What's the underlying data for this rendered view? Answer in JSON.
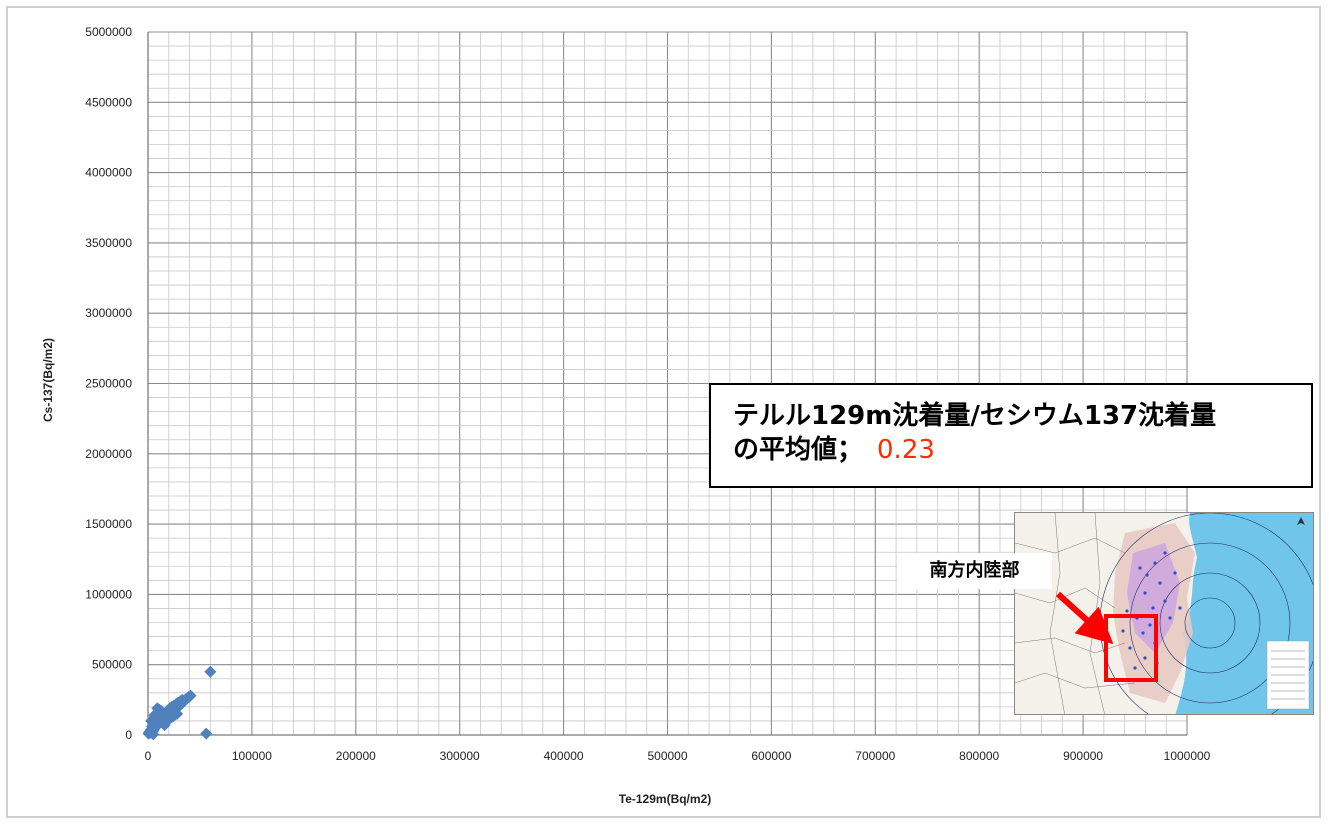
{
  "chart_data": {
    "type": "scatter",
    "xlabel": "Te-129m(Bq/m2)",
    "ylabel": "Cs-137(Bq/m2)",
    "xlim": [
      0,
      1000000
    ],
    "ylim": [
      0,
      5000000
    ],
    "x_ticks": [
      "0",
      "100000",
      "200000",
      "300000",
      "400000",
      "500000",
      "600000",
      "700000",
      "800000",
      "900000",
      "1000000"
    ],
    "y_ticks": [
      "0",
      "500000",
      "1000000",
      "1500000",
      "2000000",
      "2500000",
      "3000000",
      "3500000",
      "4000000",
      "4500000",
      "5000000"
    ],
    "grid": true,
    "minor_grid": true,
    "marker_color": "#4f81bd",
    "series": [
      {
        "points": [
          [
            500,
            10000
          ],
          [
            1000,
            20000
          ],
          [
            2000,
            15000
          ],
          [
            3000,
            40000
          ],
          [
            4000,
            60000
          ],
          [
            5000,
            30000
          ],
          [
            6000,
            80000
          ],
          [
            7000,
            100000
          ],
          [
            8000,
            120000
          ],
          [
            9000,
            140000
          ],
          [
            10000,
            160000
          ],
          [
            11000,
            180000
          ],
          [
            12000,
            150000
          ],
          [
            13000,
            170000
          ],
          [
            14000,
            120000
          ],
          [
            15000,
            130000
          ],
          [
            16000,
            100000
          ],
          [
            17000,
            150000
          ],
          [
            18000,
            160000
          ],
          [
            19000,
            140000
          ],
          [
            20000,
            180000
          ],
          [
            21000,
            190000
          ],
          [
            22000,
            170000
          ],
          [
            23000,
            200000
          ],
          [
            24000,
            180000
          ],
          [
            25000,
            210000
          ],
          [
            26000,
            200000
          ],
          [
            27000,
            220000
          ],
          [
            28000,
            190000
          ],
          [
            29000,
            230000
          ],
          [
            30000,
            210000
          ],
          [
            31000,
            240000
          ],
          [
            32000,
            220000
          ],
          [
            33000,
            250000
          ],
          [
            35000,
            240000
          ],
          [
            37000,
            260000
          ],
          [
            39000,
            270000
          ],
          [
            41000,
            280000
          ],
          [
            5000,
            5000
          ],
          [
            8000,
            60000
          ],
          [
            12000,
            90000
          ],
          [
            16000,
            70000
          ],
          [
            20000,
            110000
          ],
          [
            24000,
            130000
          ],
          [
            28000,
            150000
          ],
          [
            3000,
            100000
          ],
          [
            6000,
            140000
          ],
          [
            9000,
            190000
          ],
          [
            60000,
            450000
          ],
          [
            56000,
            10000
          ]
        ]
      }
    ]
  },
  "callout": {
    "line1": "テルル129m沈着量/セシウム137沈着量",
    "line2": "の平均値；",
    "value": "0.23",
    "value_color": "#ff2a00"
  },
  "inset_map": {
    "label": "南方内陸部",
    "highlight_color": "#ff0000",
    "sea_color": "#6fc6ea"
  }
}
